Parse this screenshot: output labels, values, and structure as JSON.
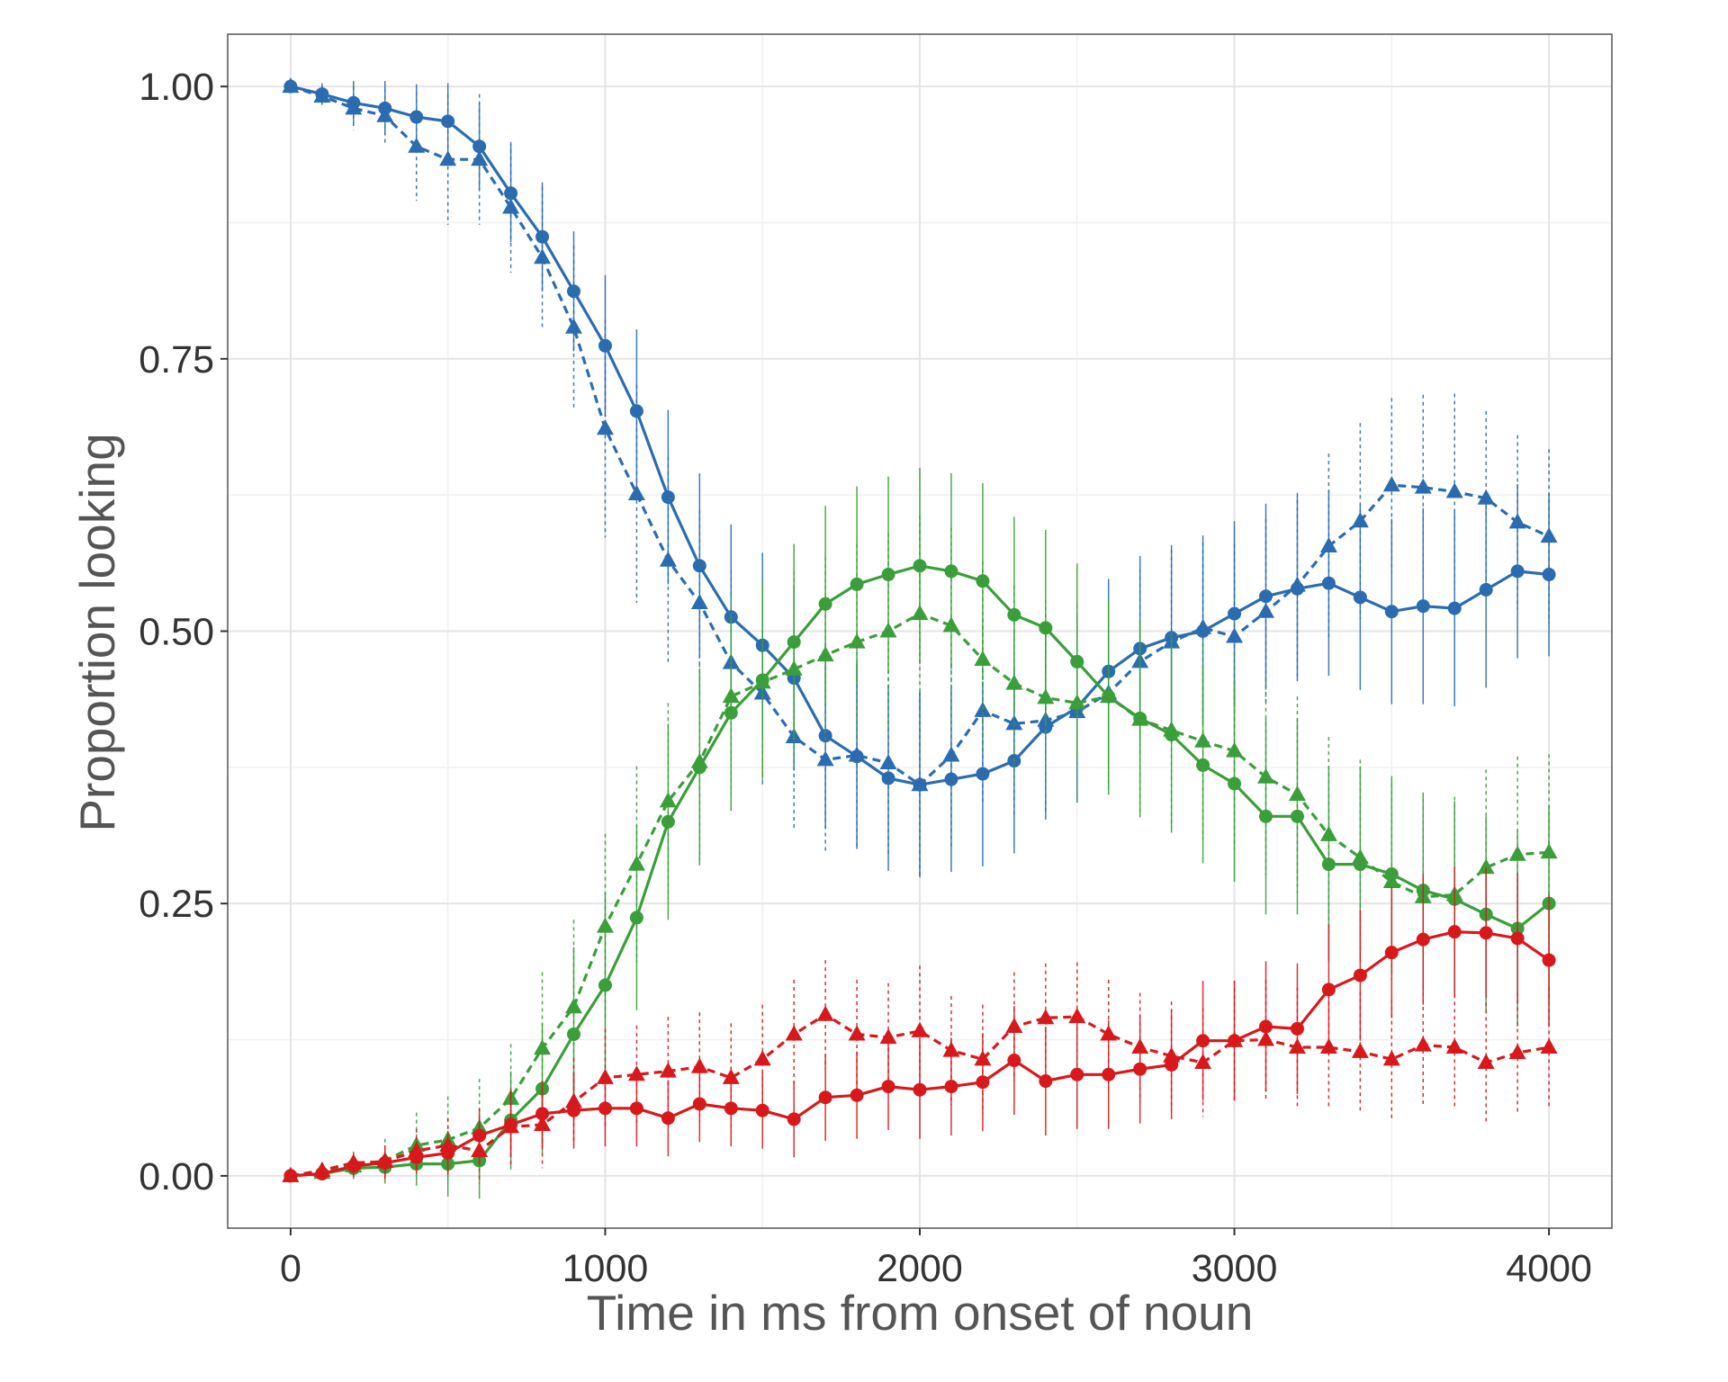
{
  "chart_data": {
    "type": "line",
    "title": "",
    "xlabel": "Time in ms from onset of noun",
    "ylabel": "Proportion looking",
    "xlim": [
      -200,
      4200
    ],
    "ylim": [
      -0.048,
      1.048
    ],
    "x_ticks": [
      0,
      1000,
      2000,
      3000,
      4000
    ],
    "x_tick_labels": [
      "0",
      "1000",
      "2000",
      "3000",
      "4000"
    ],
    "y_ticks": [
      0,
      0.25,
      0.5,
      0.75,
      1
    ],
    "y_tick_labels": [
      "0.00",
      "0.25",
      "0.50",
      "0.75",
      "1.00"
    ],
    "grid": true,
    "legend": "none",
    "x": [
      0,
      100,
      200,
      300,
      400,
      500,
      600,
      700,
      800,
      900,
      1000,
      1100,
      1200,
      1300,
      1400,
      1500,
      1600,
      1700,
      1800,
      1900,
      2000,
      2100,
      2200,
      2300,
      2400,
      2500,
      2600,
      2700,
      2800,
      2900,
      3000,
      3100,
      3200,
      3300,
      3400,
      3500,
      3600,
      3700,
      3800,
      3900,
      4000
    ],
    "series": [
      {
        "color": "#2b6cb0",
        "line": "solid",
        "marker": "circle",
        "values": [
          1.0,
          0.993,
          0.985,
          0.98,
          0.972,
          0.968,
          0.945,
          0.902,
          0.862,
          0.812,
          0.762,
          0.702,
          0.623,
          0.56,
          0.513,
          0.487,
          0.457,
          0.404,
          0.385,
          0.365,
          0.359,
          0.364,
          0.369,
          0.381,
          0.412,
          0.43,
          0.463,
          0.484,
          0.494,
          0.5,
          0.516,
          0.532,
          0.539,
          0.544,
          0.531,
          0.518,
          0.523,
          0.521,
          0.538,
          0.555,
          0.552
        ],
        "err": [
          0,
          0.01,
          0.02,
          0.025,
          0.03,
          0.035,
          0.04,
          0.045,
          0.05,
          0.055,
          0.065,
          0.075,
          0.08,
          0.085,
          0.085,
          0.085,
          0.085,
          0.085,
          0.085,
          0.085,
          0.085,
          0.085,
          0.085,
          0.085,
          0.085,
          0.085,
          0.085,
          0.085,
          0.085,
          0.085,
          0.085,
          0.085,
          0.085,
          0.085,
          0.085,
          0.085,
          0.09,
          0.09,
          0.09,
          0.08,
          0.075
        ]
      },
      {
        "color": "#2b6cb0",
        "line": "dashed",
        "marker": "triangle",
        "values": [
          1.0,
          0.991,
          0.98,
          0.973,
          0.945,
          0.933,
          0.933,
          0.889,
          0.843,
          0.779,
          0.686,
          0.626,
          0.565,
          0.526,
          0.471,
          0.443,
          0.403,
          0.382,
          0.386,
          0.379,
          0.359,
          0.386,
          0.427,
          0.415,
          0.418,
          0.426,
          0.443,
          0.472,
          0.49,
          0.503,
          0.495,
          0.518,
          0.542,
          0.578,
          0.601,
          0.634,
          0.632,
          0.628,
          0.622,
          0.6,
          0.587
        ],
        "err": [
          0,
          0.01,
          0.02,
          0.025,
          0.05,
          0.06,
          0.06,
          0.06,
          0.065,
          0.075,
          0.1,
          0.1,
          0.095,
          0.085,
          0.085,
          0.085,
          0.085,
          0.085,
          0.085,
          0.085,
          0.085,
          0.085,
          0.085,
          0.085,
          0.085,
          0.085,
          0.085,
          0.085,
          0.085,
          0.085,
          0.085,
          0.085,
          0.085,
          0.085,
          0.09,
          0.08,
          0.085,
          0.09,
          0.08,
          0.08,
          0.08
        ]
      },
      {
        "color": "#3a9e3a",
        "line": "solid",
        "marker": "circle",
        "values": [
          0.0,
          0.002,
          0.007,
          0.008,
          0.011,
          0.011,
          0.014,
          0.051,
          0.08,
          0.13,
          0.175,
          0.237,
          0.325,
          0.375,
          0.425,
          0.455,
          0.49,
          0.525,
          0.543,
          0.552,
          0.56,
          0.555,
          0.546,
          0.515,
          0.503,
          0.472,
          0.44,
          0.42,
          0.405,
          0.377,
          0.36,
          0.33,
          0.33,
          0.286,
          0.286,
          0.277,
          0.262,
          0.254,
          0.24,
          0.227,
          0.25
        ],
        "err": [
          0,
          0.005,
          0.01,
          0.015,
          0.02,
          0.03,
          0.035,
          0.045,
          0.06,
          0.08,
          0.085,
          0.085,
          0.09,
          0.09,
          0.09,
          0.09,
          0.09,
          0.09,
          0.09,
          0.09,
          0.09,
          0.09,
          0.09,
          0.09,
          0.09,
          0.09,
          0.09,
          0.09,
          0.09,
          0.09,
          0.09,
          0.09,
          0.09,
          0.09,
          0.09,
          0.09,
          0.09,
          0.09,
          0.09,
          0.09,
          0.09
        ]
      },
      {
        "color": "#3a9e3a",
        "line": "dashed",
        "marker": "triangle",
        "values": [
          0.0,
          0.003,
          0.009,
          0.014,
          0.028,
          0.033,
          0.044,
          0.071,
          0.117,
          0.155,
          0.229,
          0.286,
          0.344,
          0.38,
          0.44,
          0.453,
          0.465,
          0.478,
          0.49,
          0.5,
          0.516,
          0.505,
          0.474,
          0.452,
          0.439,
          0.434,
          0.44,
          0.419,
          0.409,
          0.399,
          0.39,
          0.366,
          0.35,
          0.313,
          0.292,
          0.27,
          0.256,
          0.258,
          0.283,
          0.295,
          0.297
        ],
        "err": [
          0,
          0.005,
          0.01,
          0.02,
          0.03,
          0.04,
          0.045,
          0.05,
          0.07,
          0.08,
          0.085,
          0.09,
          0.09,
          0.09,
          0.09,
          0.09,
          0.09,
          0.09,
          0.09,
          0.09,
          0.09,
          0.09,
          0.09,
          0.09,
          0.09,
          0.09,
          0.09,
          0.09,
          0.09,
          0.09,
          0.09,
          0.09,
          0.09,
          0.09,
          0.09,
          0.09,
          0.09,
          0.09,
          0.09,
          0.09,
          0.09
        ]
      },
      {
        "color": "#d7191c",
        "line": "solid",
        "marker": "circle",
        "values": [
          0.0,
          0.002,
          0.009,
          0.012,
          0.017,
          0.021,
          0.037,
          0.047,
          0.057,
          0.06,
          0.062,
          0.062,
          0.053,
          0.066,
          0.062,
          0.06,
          0.052,
          0.072,
          0.074,
          0.082,
          0.079,
          0.082,
          0.086,
          0.106,
          0.087,
          0.093,
          0.093,
          0.098,
          0.102,
          0.124,
          0.124,
          0.137,
          0.135,
          0.171,
          0.184,
          0.205,
          0.217,
          0.224,
          0.223,
          0.218,
          0.198
        ],
        "err": [
          0,
          0.005,
          0.01,
          0.015,
          0.015,
          0.02,
          0.025,
          0.03,
          0.03,
          0.035,
          0.035,
          0.035,
          0.035,
          0.035,
          0.035,
          0.035,
          0.035,
          0.04,
          0.04,
          0.04,
          0.045,
          0.045,
          0.045,
          0.05,
          0.05,
          0.05,
          0.05,
          0.05,
          0.05,
          0.055,
          0.055,
          0.06,
          0.06,
          0.06,
          0.06,
          0.06,
          0.06,
          0.06,
          0.06,
          0.06,
          0.06
        ]
      },
      {
        "color": "#d7191c",
        "line": "dashed",
        "marker": "triangle",
        "values": [
          0.0,
          0.005,
          0.012,
          0.013,
          0.023,
          0.028,
          0.023,
          0.045,
          0.047,
          0.068,
          0.09,
          0.093,
          0.096,
          0.1,
          0.09,
          0.107,
          0.13,
          0.148,
          0.13,
          0.127,
          0.133,
          0.115,
          0.107,
          0.137,
          0.145,
          0.146,
          0.13,
          0.118,
          0.11,
          0.104,
          0.124,
          0.125,
          0.118,
          0.118,
          0.114,
          0.107,
          0.12,
          0.118,
          0.104,
          0.113,
          0.118
        ],
        "err": [
          0,
          0.005,
          0.01,
          0.015,
          0.02,
          0.025,
          0.03,
          0.035,
          0.04,
          0.04,
          0.045,
          0.045,
          0.05,
          0.05,
          0.05,
          0.05,
          0.05,
          0.05,
          0.05,
          0.05,
          0.06,
          0.05,
          0.05,
          0.05,
          0.05,
          0.05,
          0.05,
          0.05,
          0.05,
          0.05,
          0.055,
          0.055,
          0.055,
          0.055,
          0.055,
          0.055,
          0.055,
          0.055,
          0.055,
          0.055,
          0.055
        ]
      }
    ]
  }
}
